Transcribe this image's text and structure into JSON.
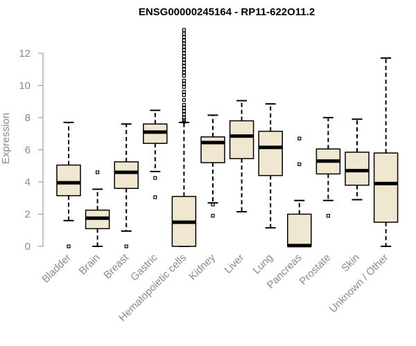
{
  "chart_data": {
    "type": "box",
    "title": "ENSG00000245164 - RP11-622O11.2",
    "ylabel": "Expression",
    "xlabel": "",
    "ylim": [
      0,
      13.5
    ],
    "yticks": [
      0,
      2,
      4,
      6,
      8,
      10,
      12
    ],
    "grid": false,
    "legend": "none",
    "box_fill": "#efe7cf",
    "categories": [
      "Bladder",
      "Brain",
      "Breast",
      "Gastric",
      "Hematopoietic cells",
      "Kidney",
      "Liver",
      "Lung",
      "Pancreas",
      "Prostate",
      "Skin",
      "Unknown / Other"
    ],
    "boxes": [
      {
        "category": "Bladder",
        "whisker_low": 1.6,
        "q1": 3.15,
        "median": 3.95,
        "q3": 5.05,
        "whisker_high": 7.7,
        "outliers": [
          0.0
        ]
      },
      {
        "category": "Brain",
        "whisker_low": 0.0,
        "q1": 1.1,
        "median": 1.75,
        "q3": 2.25,
        "whisker_high": 3.55,
        "outliers": [
          4.6
        ]
      },
      {
        "category": "Breast",
        "whisker_low": 0.95,
        "q1": 3.6,
        "median": 4.6,
        "q3": 5.25,
        "whisker_high": 7.6,
        "outliers": [
          0.0
        ]
      },
      {
        "category": "Gastric",
        "whisker_low": 4.65,
        "q1": 6.4,
        "median": 7.1,
        "q3": 7.6,
        "whisker_high": 8.45,
        "outliers": [
          4.25,
          3.05
        ]
      },
      {
        "category": "Hematopoietic cells",
        "whisker_low": 0.0,
        "q1": 0.0,
        "median": 1.5,
        "q3": 3.1,
        "whisker_high": 7.7,
        "outliers": [
          7.75,
          7.85,
          8.0,
          8.2,
          8.4,
          8.6,
          8.8,
          9.1,
          9.4,
          9.6,
          9.9,
          10.1,
          10.3,
          10.6,
          10.8,
          11.0,
          11.2,
          11.4,
          11.6,
          11.8,
          12.0,
          12.2,
          12.4,
          12.6,
          12.8,
          13.0,
          13.2,
          13.45
        ]
      },
      {
        "category": "Kidney",
        "whisker_low": 2.7,
        "q1": 5.2,
        "median": 6.45,
        "q3": 6.8,
        "whisker_high": 8.15,
        "outliers": [
          2.6,
          1.9
        ]
      },
      {
        "category": "Liver",
        "whisker_low": 2.15,
        "q1": 5.45,
        "median": 6.85,
        "q3": 7.8,
        "whisker_high": 9.05,
        "outliers": []
      },
      {
        "category": "Lung",
        "whisker_low": 1.15,
        "q1": 4.4,
        "median": 6.15,
        "q3": 7.15,
        "whisker_high": 8.85,
        "outliers": []
      },
      {
        "category": "Pancreas",
        "whisker_low": 0.0,
        "q1": 0.0,
        "median": 0.05,
        "q3": 2.0,
        "whisker_high": 2.85,
        "outliers": [
          6.7,
          5.1
        ]
      },
      {
        "category": "Prostate",
        "whisker_low": 2.85,
        "q1": 4.5,
        "median": 5.3,
        "q3": 6.05,
        "whisker_high": 8.0,
        "outliers": [
          1.9
        ]
      },
      {
        "category": "Skin",
        "whisker_low": 2.9,
        "q1": 3.8,
        "median": 4.7,
        "q3": 5.85,
        "whisker_high": 7.9,
        "outliers": []
      },
      {
        "category": "Unknown / Other",
        "whisker_low": 0.0,
        "q1": 1.5,
        "median": 3.9,
        "q3": 5.8,
        "whisker_high": 11.7,
        "outliers": []
      }
    ]
  }
}
